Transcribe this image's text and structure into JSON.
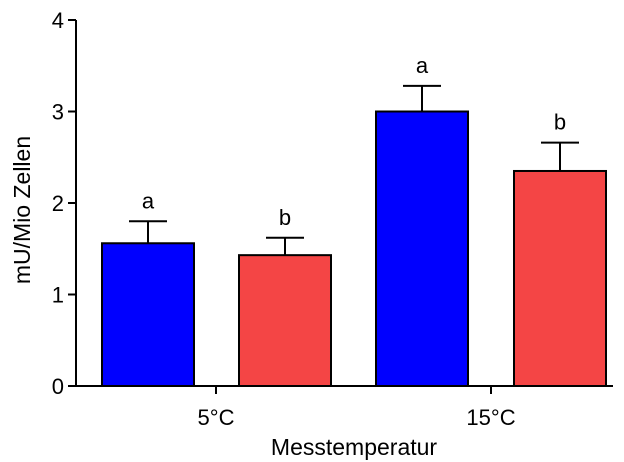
{
  "chart_data": {
    "type": "bar",
    "xlabel": "Messtemperatur",
    "ylabel": "mU/Mio  Zellen",
    "ylim": [
      0,
      4
    ],
    "yticks": [
      "0",
      "1",
      "2",
      "3",
      "4"
    ],
    "grid": false,
    "categories": [
      "5°C",
      "15°C"
    ],
    "series": [
      {
        "color": "#0000ff",
        "values": [
          1.56,
          3.0
        ],
        "errors": [
          0.24,
          0.28
        ],
        "labels": [
          "a",
          "a"
        ]
      },
      {
        "color": "#f44545",
        "values": [
          1.43,
          2.35
        ],
        "errors": [
          0.19,
          0.31
        ],
        "labels": [
          "b",
          "b"
        ]
      }
    ]
  }
}
